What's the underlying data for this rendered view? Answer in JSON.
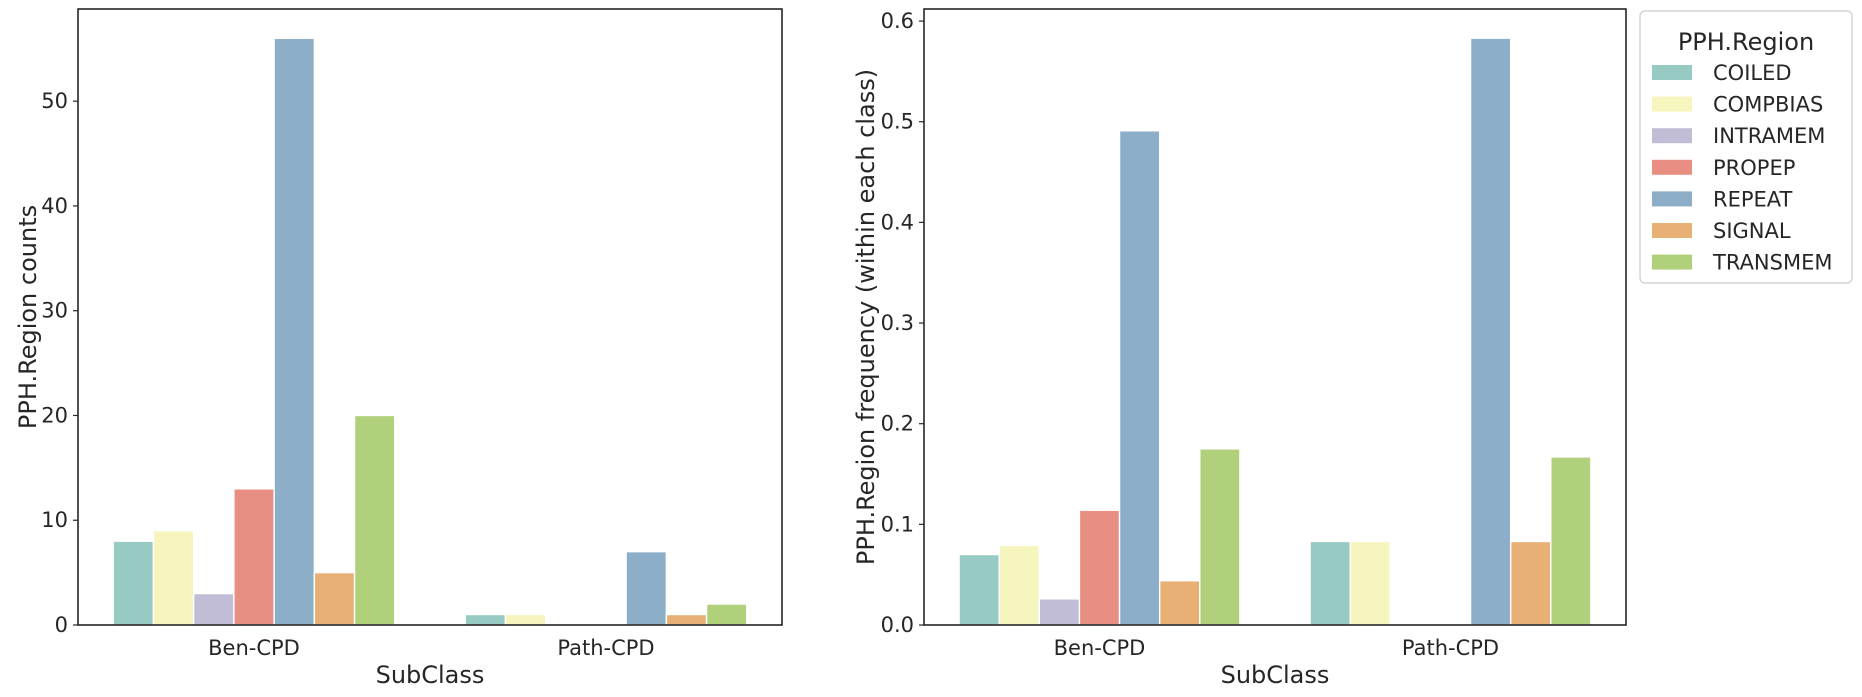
{
  "chart_data": [
    {
      "type": "bar",
      "xlabel": "SubClass",
      "ylabel": "PPH.Region counts",
      "categories": [
        "Ben-CPD",
        "Path-CPD"
      ],
      "ylim": [
        0,
        58.8
      ],
      "yticks": [
        "0",
        "10",
        "20",
        "30",
        "40",
        "50"
      ],
      "ytick_values": [
        0,
        10,
        20,
        30,
        40,
        50
      ],
      "series": [
        {
          "name": "COILED",
          "values": [
            8,
            1
          ]
        },
        {
          "name": "COMPBIAS",
          "values": [
            9,
            1
          ]
        },
        {
          "name": "INTRAMEM",
          "values": [
            3,
            0
          ]
        },
        {
          "name": "PROPEP",
          "values": [
            13,
            0
          ]
        },
        {
          "name": "REPEAT",
          "values": [
            56,
            7
          ]
        },
        {
          "name": "SIGNAL",
          "values": [
            5,
            1
          ]
        },
        {
          "name": "TRANSMEM",
          "values": [
            20,
            2
          ]
        }
      ],
      "grid": false,
      "legend": "none"
    },
    {
      "type": "bar",
      "xlabel": "SubClass",
      "ylabel": "PPH.Region frequency (within each class)",
      "categories": [
        "Ben-CPD",
        "Path-CPD"
      ],
      "ylim": [
        0,
        0.612
      ],
      "yticks": [
        "0.0",
        "0.1",
        "0.2",
        "0.3",
        "0.4",
        "0.5",
        "0.6"
      ],
      "ytick_values": [
        0,
        0.1,
        0.2,
        0.3,
        0.4,
        0.5,
        0.6
      ],
      "series": [
        {
          "name": "COILED",
          "values": [
            0.07,
            0.083
          ]
        },
        {
          "name": "COMPBIAS",
          "values": [
            0.079,
            0.083
          ]
        },
        {
          "name": "INTRAMEM",
          "values": [
            0.026,
            0
          ]
        },
        {
          "name": "PROPEP",
          "values": [
            0.114,
            0
          ]
        },
        {
          "name": "REPEAT",
          "values": [
            0.491,
            0.583
          ]
        },
        {
          "name": "SIGNAL",
          "values": [
            0.044,
            0.083
          ]
        },
        {
          "name": "TRANSMEM",
          "values": [
            0.175,
            0.167
          ]
        }
      ],
      "grid": false,
      "legend": "outside-top-right"
    }
  ],
  "legend": {
    "title": "PPH.Region",
    "items": [
      "COILED",
      "COMPBIAS",
      "INTRAMEM",
      "PROPEP",
      "REPEAT",
      "SIGNAL",
      "TRANSMEM"
    ]
  },
  "colors": [
    "#96cac2",
    "#f6f5bd",
    "#c2bdd6",
    "#e98e83",
    "#8caec8",
    "#e9b076",
    "#b0d07b"
  ]
}
